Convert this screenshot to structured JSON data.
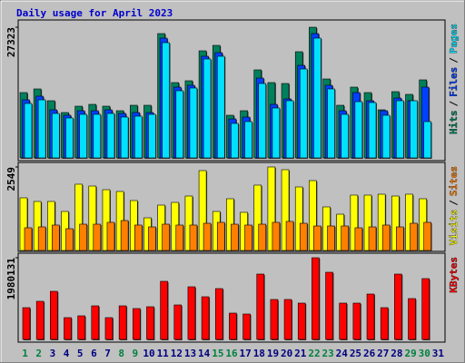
{
  "chart_data": [
    {
      "type": "bar",
      "title": "Daily usage for April 2023",
      "title_color": "#0000cc",
      "ylim": [
        0,
        27323
      ],
      "yticks": [
        27323
      ],
      "separator": "/",
      "series": [
        {
          "name": "Hits",
          "color": "#00805c",
          "values": [
            13661,
            14420,
            11954,
            9487,
            10815,
            11195,
            10815,
            9866,
            11005,
            11005,
            25994,
            15748,
            16128,
            22389,
            23528,
            8918,
            9866,
            18405,
            15748,
            15559,
            22200,
            27323,
            16507,
            11005,
            14800,
            13661,
            10056,
            13851,
            13282,
            16318,
            null
          ]
        },
        {
          "name": "Files",
          "color": "#0040ff",
          "values": [
            12143,
            12902,
            10056,
            8918,
            9866,
            9866,
            10056,
            9297,
            9487,
            9487,
            25046,
            14800,
            15179,
            21251,
            22010,
            8159,
            8538,
            16697,
            11195,
            12333,
            19353,
            25994,
            15179,
            9866,
            13661,
            11954,
            9866,
            12523,
            11954,
            14800,
            null
          ]
        },
        {
          "name": "Pages",
          "color": "#00e0ff",
          "values": [
            11384,
            12143,
            9297,
            8349,
            9108,
            9108,
            9297,
            8538,
            8728,
            9108,
            24097,
            14041,
            14610,
            20682,
            21251,
            7210,
            7590,
            15559,
            10436,
            11954,
            18595,
            25046,
            14420,
            9108,
            11764,
            11574,
            8918,
            11954,
            11954,
            7590,
            null
          ]
        }
      ]
    },
    {
      "type": "bar",
      "ylim": [
        0,
        2549
      ],
      "yticks": [
        2549
      ],
      "separator": "/",
      "series": [
        {
          "name": "Visits",
          "color": "#ffff00",
          "values": [
            1607,
            1496,
            1496,
            1191,
            2023,
            1967,
            1856,
            1801,
            1524,
            997,
            1385,
            1468,
            1662,
            2438,
            1191,
            1579,
            1164,
            1995,
            2549,
            2466,
            1939,
            2133,
            1330,
            1108,
            1690,
            1690,
            1718,
            1662,
            1718,
            1579,
            null
          ]
        },
        {
          "name": "Sites",
          "color": "#ff8000",
          "values": [
            693,
            720,
            776,
            665,
            803,
            803,
            859,
            914,
            776,
            720,
            803,
            776,
            776,
            831,
            859,
            803,
            776,
            803,
            859,
            887,
            831,
            748,
            748,
            748,
            693,
            720,
            776,
            720,
            831,
            859,
            null
          ]
        }
      ]
    },
    {
      "type": "bar",
      "ylim": [
        0,
        1980131
      ],
      "yticks": [
        1980131
      ],
      "series": [
        {
          "name": "KBytes",
          "color": "#ff0000",
          "values": [
            770052,
            924063,
            1166080,
            528036,
            572039,
            814056,
            528036,
            814056,
            748051,
            792054,
            1408096,
            836057,
            1276087,
            1034071,
            1232084,
            638044,
            616042,
            1584108,
            968066,
            968066,
            880060,
            1980131,
            1628111,
            880060,
            880060,
            1100075,
            770052,
            1584108,
            990066,
            1474100,
            null
          ]
        }
      ],
      "categories": [
        "1",
        "2",
        "3",
        "4",
        "5",
        "6",
        "7",
        "8",
        "9",
        "10",
        "11",
        "12",
        "13",
        "14",
        "15",
        "16",
        "17",
        "18",
        "19",
        "20",
        "21",
        "22",
        "23",
        "24",
        "25",
        "26",
        "27",
        "28",
        "29",
        "30",
        "31"
      ],
      "label_colors": [
        "#008040",
        "#008040",
        "#000080",
        "#000080",
        "#000080",
        "#000080",
        "#000080",
        "#008040",
        "#008040",
        "#000080",
        "#000080",
        "#000080",
        "#000080",
        "#000080",
        "#008040",
        "#008040",
        "#000080",
        "#000080",
        "#000080",
        "#000080",
        "#000080",
        "#008040",
        "#008040",
        "#000080",
        "#000080",
        "#000080",
        "#000080",
        "#000080",
        "#008040",
        "#008040",
        "#000080"
      ]
    }
  ]
}
